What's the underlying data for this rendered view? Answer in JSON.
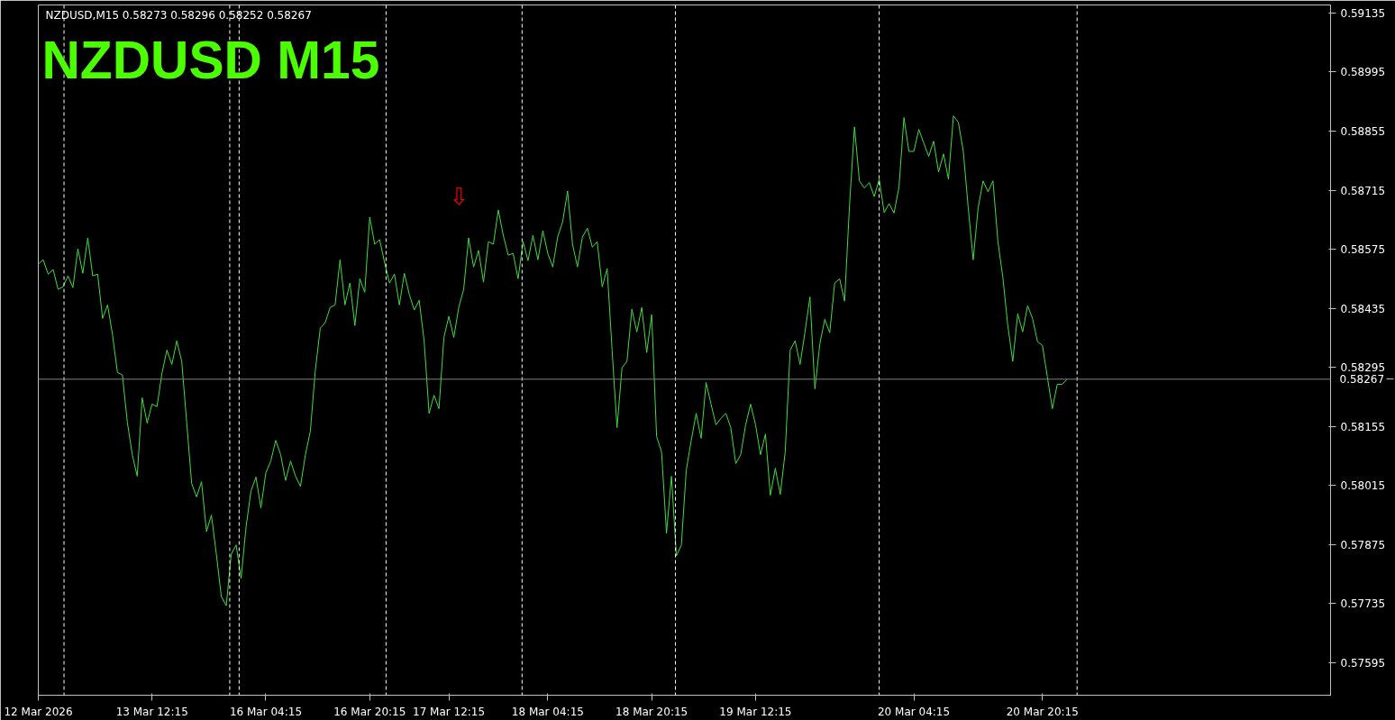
{
  "chart_data": {
    "type": "line",
    "title": "NZDUSD  M15",
    "subtitle": "NZDUSD,M15  0.58273 0.58296 0.58252 0.58267",
    "categories": [
      "12 Mar 2026",
      null,
      null,
      null,
      null,
      null,
      null,
      null,
      null,
      null,
      null,
      null,
      null,
      null,
      null,
      null,
      null,
      null,
      null,
      null,
      null,
      null,
      null,
      "13 Mar 12:15",
      null,
      null,
      null,
      null,
      null,
      null,
      null,
      null,
      null,
      null,
      null,
      null,
      null,
      null,
      null,
      null,
      null,
      null,
      null,
      null,
      null,
      null,
      "16 Mar 04:15",
      null,
      null,
      null,
      null,
      null,
      null,
      null,
      null,
      null,
      null,
      null,
      null,
      null,
      null,
      null,
      null,
      null,
      null,
      null,
      null,
      "16 Mar 20:15",
      null,
      null,
      null,
      null,
      null,
      null,
      null,
      null,
      null,
      null,
      null,
      null,
      null,
      null,
      null,
      "17 Mar 12:15",
      null,
      null,
      null,
      null,
      null,
      null,
      null,
      null,
      null,
      null,
      null,
      null,
      null,
      null,
      null,
      null,
      null,
      null,
      null,
      "18 Mar 04:15",
      null,
      null,
      null,
      null,
      null,
      null,
      null,
      null,
      null,
      null,
      null,
      null,
      null,
      null,
      null,
      null,
      null,
      null,
      null,
      null,
      "18 Mar 20:15",
      null,
      null,
      null,
      null,
      null,
      null,
      null,
      null,
      null,
      null,
      null,
      null,
      null,
      null,
      null,
      null,
      null,
      null,
      null,
      null,
      "19 Mar 12:15",
      null,
      null,
      null,
      null,
      null,
      null,
      null,
      null,
      null,
      null,
      null,
      null,
      null,
      null,
      null,
      null,
      null,
      null,
      null,
      null,
      null,
      null,
      null,
      null,
      null,
      null,
      null,
      null,
      null,
      null,
      null,
      "20 Mar 04:15",
      null,
      null,
      null,
      null,
      null,
      null,
      null,
      null,
      null,
      null,
      null,
      null,
      null,
      null,
      null,
      null,
      null,
      null,
      null,
      null,
      null,
      null,
      null,
      null,
      null,
      "20 Mar 20:15",
      null,
      null,
      null,
      null,
      null
    ],
    "series": [
      {
        "color": "#3fdc3f",
        "values": [
          0.5854,
          0.5855,
          0.58516,
          0.58527,
          0.5848,
          0.58486,
          0.58512,
          0.58484,
          0.58576,
          0.58518,
          0.58602,
          0.58512,
          0.58516,
          0.58411,
          0.58443,
          0.58373,
          0.58283,
          0.58277,
          0.58165,
          0.58088,
          0.58037,
          0.58223,
          0.58163,
          0.58208,
          0.58202,
          0.58281,
          0.58336,
          0.58302,
          0.58358,
          0.58309,
          0.58165,
          0.5802,
          0.57988,
          0.58024,
          0.57906,
          0.57945,
          0.57852,
          0.57752,
          0.5773,
          0.57852,
          0.57874,
          0.57795,
          0.57917,
          0.58002,
          0.58035,
          0.57962,
          0.58045,
          0.58073,
          0.58122,
          0.58088,
          0.58027,
          0.58073,
          0.58037,
          0.58013,
          0.58088,
          0.58144,
          0.58287,
          0.58388,
          0.58401,
          0.58437,
          0.58443,
          0.5855,
          0.58443,
          0.58495,
          0.58394,
          0.58505,
          0.58473,
          0.58651,
          0.58587,
          0.58598,
          0.58544,
          0.58495,
          0.58516,
          0.58443,
          0.58518,
          0.58468,
          0.58431,
          0.58454,
          0.58358,
          0.58186,
          0.58229,
          0.58197,
          0.58366,
          0.58416,
          0.58366,
          0.58437,
          0.5848,
          0.58602,
          0.58533,
          0.58572,
          0.58497,
          0.58593,
          0.58587,
          0.58668,
          0.58608,
          0.58561,
          0.58565,
          0.58505,
          0.58593,
          0.58548,
          0.58608,
          0.5855,
          0.58619,
          0.58565,
          0.58533,
          0.58604,
          0.5864,
          0.58713,
          0.58587,
          0.58533,
          0.58604,
          0.58625,
          0.5858,
          0.58593,
          0.58486,
          0.58529,
          0.58336,
          0.58152,
          0.58294,
          0.58309,
          0.58433,
          0.58379,
          0.58437,
          0.5833,
          0.5842,
          0.58131,
          0.58095,
          0.57902,
          0.58037,
          0.57848,
          0.57874,
          0.58052,
          0.58122,
          0.58186,
          0.58127,
          0.58259,
          0.58208,
          0.58159,
          0.58174,
          0.58186,
          0.58152,
          0.58067,
          0.58088,
          0.58159,
          0.58208,
          0.58159,
          0.58088,
          0.58137,
          0.57992,
          0.58056,
          0.57994,
          0.58095,
          0.58336,
          0.58358,
          0.58302,
          0.58379,
          0.58462,
          0.58244,
          0.58351,
          0.58409,
          0.58377,
          0.58495,
          0.58505,
          0.58452,
          0.58679,
          0.58865,
          0.58737,
          0.5872,
          0.58733,
          0.587,
          0.58741,
          0.58662,
          0.58683,
          0.58661,
          0.58722,
          0.58887,
          0.58807,
          0.58807,
          0.58859,
          0.58827,
          0.58795,
          0.58831,
          0.58758,
          0.58801,
          0.58741,
          0.58891,
          0.58876,
          0.58807,
          0.58673,
          0.5855,
          0.58673,
          0.58737,
          0.58711,
          0.58737,
          0.58593,
          0.58508,
          0.58394,
          0.58309,
          0.58422,
          0.58379,
          0.58441,
          0.58411,
          0.58356,
          0.58347,
          0.58272,
          0.58197,
          0.58255,
          0.58255,
          0.58267
        ]
      }
    ],
    "ylim": [
      0.57518,
      0.59154
    ],
    "yticks": [
      {
        "value": 0.57595,
        "label": "0.57595"
      },
      {
        "value": 0.57735,
        "label": "0.57735"
      },
      {
        "value": 0.57875,
        "label": "0.57875"
      },
      {
        "value": 0.58015,
        "label": "0.58015"
      },
      {
        "value": 0.58155,
        "label": "0.58155"
      },
      {
        "value": 0.58295,
        "label": "0.58295"
      },
      {
        "value": 0.58435,
        "label": "0.58435"
      },
      {
        "value": 0.58575,
        "label": "0.58575"
      },
      {
        "value": 0.58715,
        "label": "0.58715"
      },
      {
        "value": 0.58855,
        "label": "0.58855"
      },
      {
        "value": 0.58995,
        "label": "0.58995"
      },
      {
        "value": 0.59135,
        "label": "0.59135"
      }
    ],
    "grid": false,
    "line_style": "solid",
    "ref_lines": [
      {
        "axis": "y",
        "value": 0.58267,
        "label": "0.58267",
        "color": "#808080",
        "line_style": "solid"
      }
    ],
    "annotations": [
      "⇩"
    ]
  }
}
